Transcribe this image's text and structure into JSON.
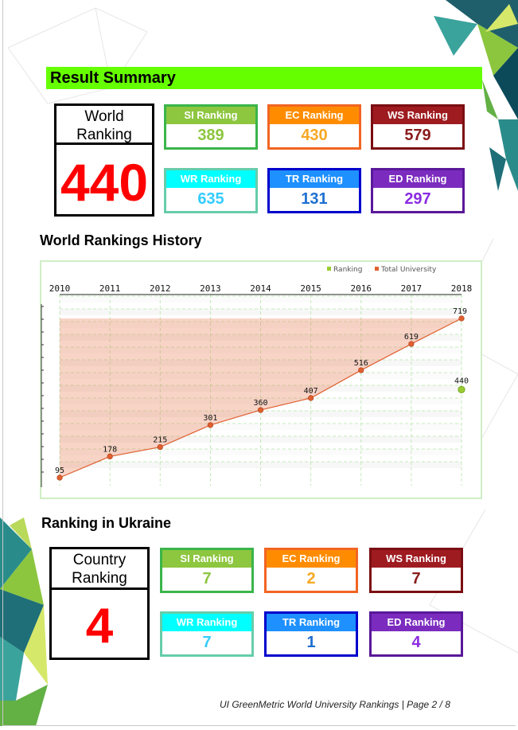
{
  "result_summary": {
    "title": "Result Summary",
    "world_ranking_label": "World Ranking",
    "world_ranking_value": "440",
    "cards": [
      {
        "label": "SI Ranking",
        "value": "389",
        "label_bg": "#8dc63f",
        "border": "#3ab54a",
        "value_color": "#8dc63f"
      },
      {
        "label": "EC Ranking",
        "value": "430",
        "label_bg": "#ff8c00",
        "border": "#f26522",
        "value_color": "#f7a823"
      },
      {
        "label": "WS Ranking",
        "value": "579",
        "label_bg": "#9e1b20",
        "border": "#7b0e12",
        "value_color": "#8a1c1c"
      },
      {
        "label": "WR Ranking",
        "value": "635",
        "label_bg": "#00ffff",
        "border": "#66cdaa",
        "value_color": "#33ccff"
      },
      {
        "label": "TR Ranking",
        "value": "131",
        "label_bg": "#1e90ff",
        "border": "#0000cc",
        "value_color": "#1e6fd0"
      },
      {
        "label": "ED Ranking",
        "value": "297",
        "label_bg": "#7b2cbf",
        "border": "#5a189a",
        "value_color": "#8a2be2"
      }
    ]
  },
  "history": {
    "title": "World Rankings History"
  },
  "chart_data": {
    "type": "area",
    "x": [
      "2010",
      "2011",
      "2012",
      "2013",
      "2014",
      "2015",
      "2016",
      "2017",
      "2018"
    ],
    "series": [
      {
        "name": "Total University",
        "values": [
          95,
          178,
          215,
          301,
          360,
          407,
          516,
          619,
          719
        ],
        "color": "#e06030"
      },
      {
        "name": "Ranking",
        "values": [
          null,
          null,
          null,
          null,
          null,
          null,
          null,
          null,
          440
        ],
        "color": "#99cc33"
      }
    ],
    "ylim": [
      719,
      95
    ],
    "grid": true,
    "legend": "top-right"
  },
  "ukraine": {
    "title": "Ranking in Ukraine",
    "country_ranking_label": "Country Ranking",
    "country_ranking_value": "4",
    "cards": [
      {
        "label": "SI Ranking",
        "value": "7",
        "label_bg": "#8dc63f",
        "border": "#3ab54a",
        "value_color": "#8dc63f"
      },
      {
        "label": "EC Ranking",
        "value": "2",
        "label_bg": "#ff8c00",
        "border": "#f26522",
        "value_color": "#f7a823"
      },
      {
        "label": "WS Ranking",
        "value": "7",
        "label_bg": "#9e1b20",
        "border": "#7b0e12",
        "value_color": "#8a1c1c"
      },
      {
        "label": "WR Ranking",
        "value": "7",
        "label_bg": "#00ffff",
        "border": "#66cdaa",
        "value_color": "#33ccff"
      },
      {
        "label": "TR Ranking",
        "value": "1",
        "label_bg": "#1e90ff",
        "border": "#0000cc",
        "value_color": "#1e6fd0"
      },
      {
        "label": "ED Ranking",
        "value": "4",
        "label_bg": "#7b2cbf",
        "border": "#5a189a",
        "value_color": "#8a2be2"
      }
    ]
  },
  "footer": "UI GreenMetric World University Rankings | Page 2 / 8"
}
